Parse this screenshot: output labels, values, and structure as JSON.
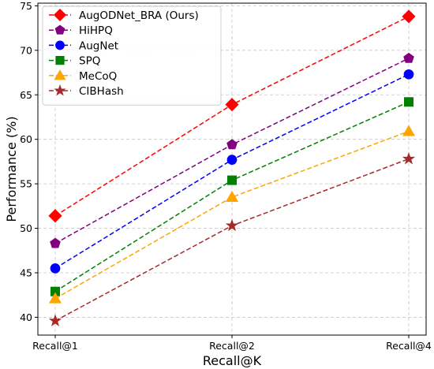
{
  "chart_data": {
    "type": "line",
    "title": "",
    "xlabel": "Recall@K",
    "ylabel": "Performance (%)",
    "categories": [
      "Recall@1",
      "Recall@2",
      "Recall@4"
    ],
    "ylim": [
      38,
      75.3
    ],
    "yticks": [
      40,
      45,
      50,
      55,
      60,
      65,
      70,
      75
    ],
    "grid": true,
    "legend_position": "top-left",
    "series": [
      {
        "name": "AugODNet_BRA (Ours)",
        "color": "#ff0000",
        "marker": "diamond",
        "values": [
          51.4,
          63.9,
          73.8
        ]
      },
      {
        "name": "HiHPQ",
        "color": "#800080",
        "marker": "pentagon",
        "values": [
          48.3,
          59.4,
          69.1
        ]
      },
      {
        "name": "AugNet",
        "color": "#0000ff",
        "marker": "circle",
        "values": [
          45.5,
          57.7,
          67.3
        ]
      },
      {
        "name": "SPQ",
        "color": "#008000",
        "marker": "square",
        "values": [
          42.9,
          55.4,
          64.2
        ]
      },
      {
        "name": "MeCoQ",
        "color": "#ffa500",
        "marker": "triangle",
        "values": [
          42.1,
          53.5,
          60.9
        ]
      },
      {
        "name": "CIBHash",
        "color": "#a52a2a",
        "marker": "star",
        "values": [
          39.6,
          50.3,
          57.8
        ]
      }
    ]
  }
}
